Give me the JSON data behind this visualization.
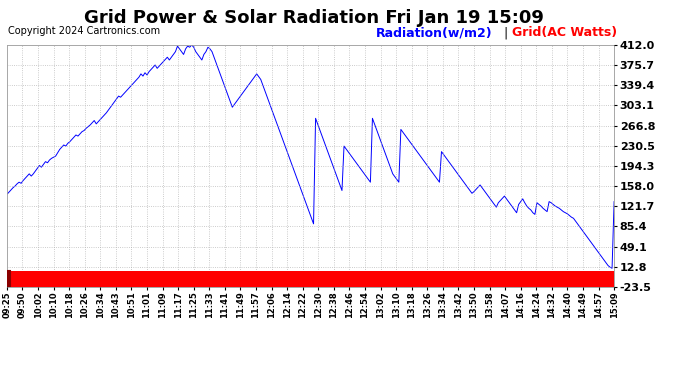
{
  "title": "Grid Power & Solar Radiation Fri Jan 19 15:09",
  "copyright": "Copyright 2024 Cartronics.com",
  "legend_radiation": "Radiation(w/m2)",
  "legend_grid": "Grid(AC Watts)",
  "legend_radiation_color": "blue",
  "legend_grid_color": "red",
  "yticks": [
    412.0,
    375.7,
    339.4,
    303.1,
    266.8,
    230.5,
    194.3,
    158.0,
    121.7,
    85.4,
    49.1,
    12.8,
    -23.5
  ],
  "ymin": -23.5,
  "ymax": 412.0,
  "background_color": "#ffffff",
  "plot_bg_color": "#ffffff",
  "grid_color": "#aaaaaa",
  "line_color": "blue",
  "bar_color": "red",
  "xtick_labels": [
    "09:25",
    "09:50",
    "10:02",
    "10:10",
    "10:18",
    "10:26",
    "10:34",
    "10:43",
    "10:51",
    "11:01",
    "11:09",
    "11:17",
    "11:25",
    "11:33",
    "11:41",
    "11:49",
    "11:57",
    "12:06",
    "12:14",
    "12:22",
    "12:30",
    "12:38",
    "12:46",
    "12:54",
    "13:02",
    "13:10",
    "13:18",
    "13:26",
    "13:34",
    "13:42",
    "13:50",
    "13:58",
    "14:07",
    "14:16",
    "14:24",
    "14:32",
    "14:40",
    "14:49",
    "14:57",
    "15:09"
  ],
  "radiation_values": [
    143,
    147,
    151,
    155,
    158,
    162,
    165,
    163,
    168,
    172,
    176,
    180,
    176,
    180,
    185,
    190,
    195,
    192,
    197,
    202,
    200,
    205,
    208,
    210,
    212,
    218,
    224,
    228,
    232,
    230,
    235,
    238,
    242,
    246,
    250,
    248,
    252,
    256,
    258,
    262,
    265,
    268,
    272,
    276,
    270,
    274,
    278,
    282,
    286,
    290,
    295,
    300,
    305,
    310,
    315,
    320,
    318,
    322,
    326,
    330,
    334,
    338,
    342,
    346,
    350,
    354,
    360,
    356,
    362,
    358,
    364,
    368,
    372,
    376,
    370,
    374,
    378,
    382,
    386,
    390,
    385,
    390,
    395,
    400,
    410,
    405,
    400,
    395,
    405,
    410,
    408,
    412,
    408,
    400,
    395,
    390,
    385,
    395,
    400,
    408,
    405,
    400,
    390,
    380,
    370,
    360,
    350,
    340,
    330,
    320,
    310,
    300,
    305,
    310,
    315,
    320,
    325,
    330,
    335,
    340,
    345,
    350,
    355,
    360,
    355,
    350,
    340,
    330,
    320,
    310,
    300,
    290,
    280,
    270,
    260,
    250,
    240,
    230,
    220,
    210,
    200,
    190,
    180,
    170,
    160,
    150,
    140,
    130,
    120,
    110,
    100,
    90,
    280,
    270,
    260,
    250,
    240,
    230,
    220,
    210,
    200,
    190,
    180,
    170,
    160,
    150,
    230,
    225,
    220,
    215,
    210,
    205,
    200,
    195,
    190,
    185,
    180,
    175,
    170,
    165,
    280,
    270,
    260,
    250,
    240,
    230,
    220,
    210,
    200,
    190,
    180,
    175,
    170,
    165,
    260,
    255,
    250,
    245,
    240,
    235,
    230,
    225,
    220,
    215,
    210,
    205,
    200,
    195,
    190,
    185,
    180,
    175,
    170,
    165,
    220,
    215,
    210,
    205,
    200,
    195,
    190,
    185,
    180,
    175,
    170,
    165,
    160,
    155,
    150,
    145,
    148,
    152,
    156,
    160,
    155,
    150,
    145,
    140,
    135,
    130,
    125,
    120,
    128,
    132,
    136,
    140,
    135,
    130,
    125,
    120,
    115,
    110,
    125,
    130,
    135,
    128,
    122,
    118,
    115,
    110,
    107,
    128,
    125,
    122,
    118,
    115,
    112,
    130,
    128,
    125,
    122,
    120,
    118,
    115,
    112,
    110,
    108,
    105,
    102,
    100,
    95,
    90,
    85,
    80,
    75,
    70,
    65,
    60,
    55,
    50,
    45,
    40,
    35,
    30,
    25,
    20,
    15,
    12,
    10,
    130
  ],
  "title_fontsize": 13,
  "axis_fontsize": 8,
  "copyright_fontsize": 7,
  "legend_fontsize": 9
}
